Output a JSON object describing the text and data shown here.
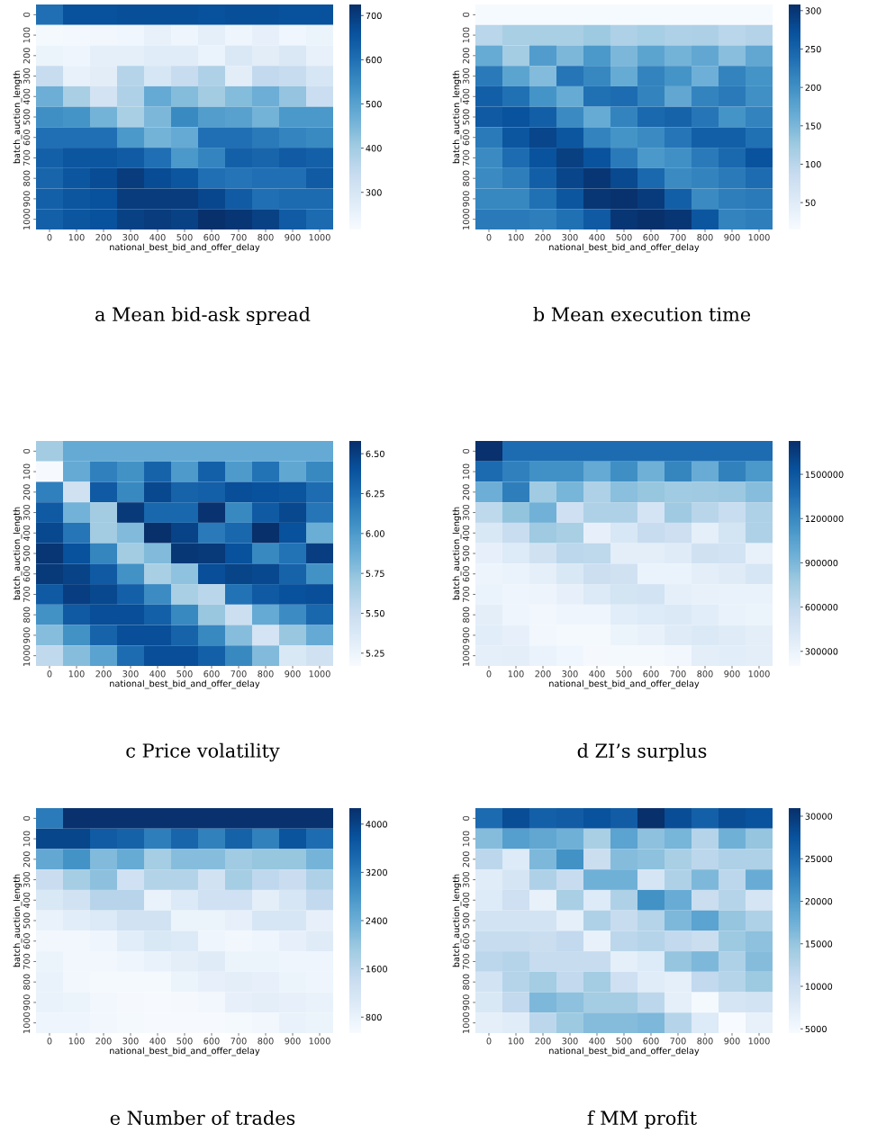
{
  "chart_data": [
    {
      "type": "heatmap",
      "title": "a Mean bid-ask spread",
      "xlabel": "national_best_bid_and_offer_delay",
      "ylabel": "batch_auction_length",
      "categories": [
        "0",
        "100",
        "200",
        "300",
        "400",
        "500",
        "600",
        "700",
        "800",
        "900",
        "1000"
      ],
      "y_categories": [
        "0",
        "100",
        "200",
        "300",
        "400",
        "500",
        "600",
        "700",
        "800",
        "900",
        "1000"
      ],
      "clim": [
        216,
        725
      ],
      "cticks": [
        300,
        400,
        500,
        600,
        700
      ],
      "cells": [
        [
          600,
          660,
          660,
          665,
          665,
          665,
          660,
          665,
          665,
          660,
          660
        ],
        [
          225,
          228,
          232,
          235,
          255,
          240,
          265,
          240,
          258,
          235,
          245
        ],
        [
          245,
          238,
          265,
          265,
          275,
          275,
          250,
          290,
          270,
          290,
          255
        ],
        [
          340,
          255,
          270,
          370,
          300,
          340,
          380,
          270,
          350,
          340,
          300
        ],
        [
          470,
          390,
          310,
          380,
          480,
          440,
          400,
          440,
          470,
          420,
          330
        ],
        [
          540,
          530,
          460,
          390,
          450,
          550,
          510,
          500,
          460,
          520,
          520
        ],
        [
          600,
          600,
          600,
          520,
          460,
          480,
          600,
          600,
          580,
          560,
          550
        ],
        [
          630,
          650,
          650,
          640,
          600,
          520,
          560,
          630,
          620,
          640,
          630
        ],
        [
          620,
          650,
          670,
          700,
          670,
          650,
          600,
          590,
          600,
          600,
          640
        ],
        [
          630,
          650,
          660,
          700,
          700,
          700,
          680,
          640,
          600,
          610,
          610
        ],
        [
          630,
          650,
          660,
          690,
          700,
          690,
          725,
          715,
          690,
          640,
          610
        ]
      ]
    },
    {
      "type": "heatmap",
      "title": "b Mean execution time",
      "xlabel": "national_best_bid_and_offer_delay",
      "ylabel": "batch_auction_length",
      "categories": [
        "0",
        "100",
        "200",
        "300",
        "400",
        "500",
        "600",
        "700",
        "800",
        "900",
        "1000"
      ],
      "y_categories": [
        "0",
        "100",
        "200",
        "300",
        "400",
        "500",
        "600",
        "700",
        "800",
        "900",
        "1000"
      ],
      "clim": [
        15,
        308
      ],
      "cticks": [
        50,
        100,
        150,
        200,
        250,
        300
      ],
      "cells": [
        [
          18,
          18,
          18,
          18,
          18,
          18,
          18,
          18,
          18,
          18,
          18
        ],
        [
          100,
          115,
          115,
          115,
          125,
          110,
          118,
          110,
          112,
          100,
          105
        ],
        [
          165,
          120,
          185,
          150,
          190,
          150,
          175,
          155,
          170,
          140,
          170
        ],
        [
          225,
          175,
          145,
          230,
          210,
          165,
          215,
          195,
          160,
          215,
          195
        ],
        [
          255,
          235,
          195,
          165,
          235,
          240,
          215,
          170,
          215,
          225,
          200
        ],
        [
          260,
          270,
          255,
          205,
          165,
          215,
          245,
          250,
          230,
          195,
          215
        ],
        [
          225,
          265,
          285,
          265,
          215,
          195,
          205,
          230,
          255,
          255,
          235
        ],
        [
          205,
          240,
          270,
          290,
          270,
          225,
          190,
          200,
          225,
          245,
          270
        ],
        [
          205,
          220,
          255,
          285,
          300,
          280,
          245,
          205,
          215,
          225,
          240
        ],
        [
          210,
          210,
          235,
          265,
          300,
          305,
          295,
          255,
          205,
          220,
          225
        ],
        [
          225,
          225,
          220,
          235,
          260,
          300,
          308,
          300,
          265,
          215,
          220
        ]
      ]
    },
    {
      "type": "heatmap",
      "title": "c Price volatility",
      "xlabel": "national_best_bid_and_offer_delay",
      "ylabel": "batch_auction_length",
      "categories": [
        "0",
        "100",
        "200",
        "300",
        "400",
        "500",
        "600",
        "700",
        "800",
        "900",
        "1000"
      ],
      "y_categories": [
        "0",
        "100",
        "200",
        "300",
        "400",
        "500",
        "600",
        "700",
        "800",
        "900",
        "1000"
      ],
      "clim": [
        5.17,
        6.58
      ],
      "cticks": [
        5.25,
        {
          "value": 5.5,
          "label": "5.50"
        },
        5.75,
        {
          "value": 6,
          "label": "6.00"
        },
        6.25,
        {
          "value": 6.5,
          "label": "6.50"
        }
      ],
      "cells": [
        [
          5.68,
          5.9,
          5.9,
          5.9,
          5.9,
          5.9,
          5.9,
          5.9,
          5.9,
          5.9,
          5.9
        ],
        [
          5.18,
          5.9,
          6.15,
          6.05,
          6.3,
          6.0,
          6.32,
          6.0,
          6.22,
          5.92,
          6.1
        ],
        [
          6.15,
          5.45,
          6.35,
          6.1,
          6.45,
          6.3,
          6.32,
          6.42,
          6.4,
          6.38,
          6.25
        ],
        [
          6.35,
          5.85,
          5.68,
          6.52,
          6.28,
          6.28,
          6.56,
          6.1,
          6.35,
          6.45,
          6.2
        ],
        [
          6.45,
          6.2,
          5.68,
          5.8,
          6.58,
          6.48,
          6.18,
          6.28,
          6.58,
          6.4,
          5.88
        ],
        [
          6.55,
          6.4,
          6.12,
          5.68,
          5.8,
          6.54,
          6.53,
          6.4,
          6.1,
          6.22,
          6.5
        ],
        [
          6.52,
          6.48,
          6.35,
          6.05,
          5.65,
          5.75,
          6.42,
          6.47,
          6.45,
          6.3,
          6.05
        ],
        [
          6.35,
          6.5,
          6.45,
          6.32,
          6.08,
          5.65,
          5.58,
          6.22,
          6.35,
          6.4,
          6.42
        ],
        [
          6.05,
          6.35,
          6.42,
          6.42,
          6.32,
          6.1,
          5.72,
          5.48,
          5.9,
          6.08,
          6.28
        ],
        [
          5.78,
          6.05,
          6.3,
          6.42,
          6.42,
          6.3,
          6.1,
          5.78,
          5.42,
          5.72,
          5.9
        ],
        [
          5.55,
          5.78,
          5.95,
          6.25,
          6.42,
          6.42,
          6.32,
          6.1,
          5.8,
          5.38,
          5.45
        ]
      ]
    },
    {
      "type": "heatmap",
      "title": "d ZI’s surplus",
      "xlabel": "national_best_bid_and_offer_delay",
      "ylabel": "batch_auction_length",
      "categories": [
        "0",
        "100",
        "200",
        "300",
        "400",
        "500",
        "600",
        "700",
        "800",
        "900",
        "1000"
      ],
      "y_categories": [
        "0",
        "100",
        "200",
        "300",
        "400",
        "500",
        "600",
        "700",
        "800",
        "900",
        "1000"
      ],
      "clim": [
        201000,
        1726000
      ],
      "cticks": [
        300000,
        600000,
        900000,
        1200000,
        1500000
      ],
      "cells": [
        [
          1720000,
          1370000,
          1370000,
          1370000,
          1370000,
          1370000,
          1370000,
          1370000,
          1370000,
          1370000,
          1370000
        ],
        [
          1380000,
          1260000,
          1160000,
          1160000,
          990000,
          1170000,
          950000,
          1230000,
          980000,
          1250000,
          1110000
        ],
        [
          960000,
          1270000,
          760000,
          920000,
          700000,
          850000,
          800000,
          760000,
          770000,
          780000,
          860000
        ],
        [
          620000,
          820000,
          940000,
          520000,
          690000,
          690000,
          470000,
          770000,
          650000,
          560000,
          700000
        ],
        [
          430000,
          560000,
          770000,
          720000,
          330000,
          440000,
          570000,
          530000,
          340000,
          480000,
          700000
        ],
        [
          330000,
          400000,
          500000,
          630000,
          620000,
          350000,
          350000,
          390000,
          500000,
          490000,
          320000
        ],
        [
          280000,
          300000,
          340000,
          430000,
          540000,
          510000,
          300000,
          300000,
          350000,
          390000,
          450000
        ],
        [
          300000,
          270000,
          280000,
          330000,
          410000,
          480000,
          490000,
          340000,
          320000,
          310000,
          310000
        ],
        [
          350000,
          270000,
          250000,
          270000,
          270000,
          370000,
          400000,
          420000,
          370000,
          310000,
          290000
        ],
        [
          370000,
          330000,
          250000,
          230000,
          230000,
          290000,
          320000,
          380000,
          420000,
          380000,
          360000
        ],
        [
          340000,
          360000,
          300000,
          260000,
          220000,
          230000,
          230000,
          250000,
          350000,
          370000,
          350000
        ]
      ]
    },
    {
      "type": "heatmap",
      "title": "e Number of trades",
      "xlabel": "national_best_bid_and_offer_delay",
      "ylabel": "batch_auction_length",
      "categories": [
        "0",
        "100",
        "200",
        "300",
        "400",
        "500",
        "600",
        "700",
        "800",
        "900",
        "1000"
      ],
      "y_categories": [
        "0",
        "100",
        "200",
        "300",
        "400",
        "500",
        "600",
        "700",
        "800",
        "900",
        "1000"
      ],
      "clim": [
        535,
        4265
      ],
      "cticks": [
        800,
        1600,
        2400,
        3200,
        4000
      ],
      "cells": [
        [
          3200,
          4250,
          4250,
          4250,
          4250,
          4250,
          4250,
          4250,
          4250,
          4250,
          4250
        ],
        [
          3950,
          3950,
          3650,
          3550,
          3150,
          3500,
          3100,
          3550,
          3100,
          3750,
          3400
        ],
        [
          2500,
          2850,
          2200,
          2450,
          1850,
          2150,
          2150,
          1900,
          2000,
          2000,
          2300
        ],
        [
          1400,
          1850,
          2100,
          1300,
          1700,
          1700,
          1250,
          1850,
          1550,
          1400,
          1750
        ],
        [
          1100,
          1250,
          1650,
          1650,
          800,
          1050,
          1300,
          1300,
          900,
          1150,
          1500
        ],
        [
          800,
          950,
          1050,
          1250,
          1250,
          750,
          750,
          850,
          1150,
          1150,
          850
        ],
        [
          650,
          650,
          700,
          950,
          1100,
          1050,
          700,
          650,
          700,
          850,
          1000
        ],
        [
          750,
          650,
          650,
          700,
          800,
          900,
          1000,
          750,
          750,
          700,
          700
        ],
        [
          800,
          650,
          600,
          600,
          600,
          750,
          850,
          900,
          850,
          750,
          700
        ],
        [
          800,
          750,
          650,
          580,
          560,
          580,
          650,
          850,
          900,
          850,
          800
        ],
        [
          700,
          700,
          650,
          600,
          560,
          560,
          560,
          600,
          650,
          800,
          750
        ]
      ]
    },
    {
      "type": "heatmap",
      "title": "f MM profit",
      "xlabel": "national_best_bid_and_offer_delay",
      "ylabel": "batch_auction_length",
      "categories": [
        "0",
        "100",
        "200",
        "300",
        "400",
        "500",
        "600",
        "700",
        "800",
        "900",
        "1000"
      ],
      "y_categories": [
        "0",
        "100",
        "200",
        "300",
        "400",
        "500",
        "600",
        "700",
        "800",
        "900",
        "1000"
      ],
      "clim": [
        4500,
        30950
      ],
      "cticks": [
        5000,
        10000,
        15000,
        20000,
        25000,
        30000
      ],
      "cells": [
        [
          25000,
          28000,
          26000,
          26500,
          27500,
          26500,
          30950,
          28000,
          26000,
          28000,
          27500
        ],
        [
          16000,
          19500,
          18500,
          17500,
          13500,
          19000,
          15500,
          17000,
          12500,
          17500,
          15000
        ],
        [
          12000,
          8000,
          16500,
          21000,
          10500,
          16000,
          15500,
          13500,
          12000,
          13000,
          13000
        ],
        [
          7500,
          9000,
          13000,
          11000,
          17500,
          17500,
          9000,
          13000,
          16500,
          12000,
          18000
        ],
        [
          8000,
          10000,
          6500,
          13500,
          8000,
          13000,
          21000,
          18000,
          10500,
          12500,
          9000
        ],
        [
          9500,
          9500,
          9500,
          7000,
          13000,
          11000,
          12500,
          16500,
          19000,
          15000,
          13000
        ],
        [
          11000,
          11000,
          10500,
          11500,
          6500,
          12000,
          12500,
          11500,
          10500,
          14500,
          15500
        ],
        [
          12000,
          12500,
          11000,
          11000,
          11000,
          7000,
          8000,
          15000,
          16500,
          13000,
          16000
        ],
        [
          9500,
          12500,
          14000,
          11500,
          14000,
          10000,
          7500,
          7000,
          11500,
          12500,
          14500
        ],
        [
          8500,
          11500,
          16500,
          15500,
          14000,
          14000,
          12000,
          7000,
          5000,
          9000,
          9500
        ],
        [
          7000,
          7500,
          12000,
          14500,
          16000,
          16000,
          16500,
          12500,
          8000,
          4500,
          6500
        ]
      ]
    }
  ]
}
